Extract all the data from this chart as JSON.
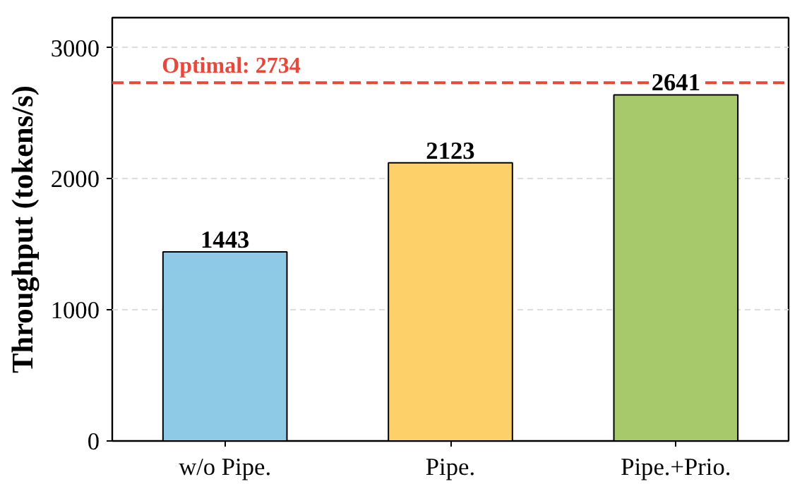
{
  "chart_data": {
    "type": "bar",
    "ylabel": "Throughput (tokens/s)",
    "categories": [
      "w/o Pipe.",
      "Pipe.",
      "Pipe.+Prio."
    ],
    "values": [
      1443,
      2123,
      2641
    ],
    "colors": [
      "#8ecae6",
      "#fdd06a",
      "#a8c96b"
    ],
    "ylim": [
      0,
      3230
    ],
    "yticks": [
      0,
      1000,
      2000,
      3000
    ],
    "grid": "y",
    "data_labels": true,
    "ref_lines": [
      {
        "axis": "y",
        "value": 2734,
        "label": "Optimal: 2734",
        "color": "#e8483b",
        "line_style": "dashed"
      }
    ]
  }
}
